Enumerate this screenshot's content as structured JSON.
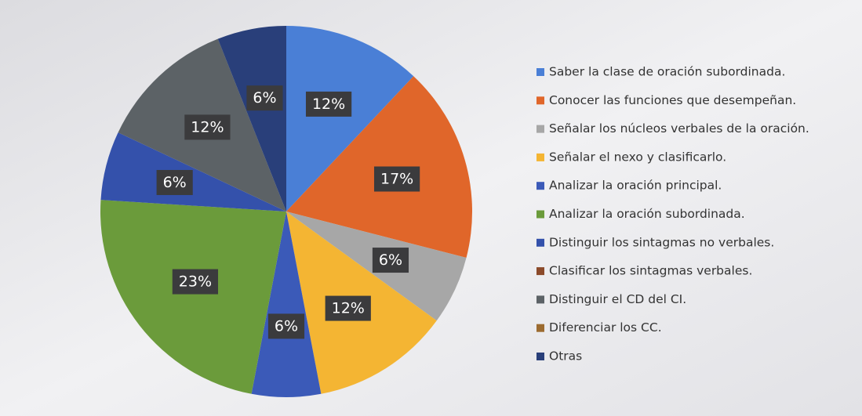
{
  "chart_data": {
    "type": "pie",
    "categories": [
      "Saber la clase de oración subordinada.",
      "Conocer las funciones que desempeñan.",
      "Señalar los núcleos verbales de la oración.",
      "Señalar el nexo y clasificarlo.",
      "Analizar la oración principal.",
      "Analizar la oración subordinada.",
      "Distinguir los sintagmas no verbales.",
      "Clasificar los sintagmas verbales.",
      "Distinguir el CD del CI.",
      "Diferenciar los CC.",
      "Otras"
    ],
    "values": [
      12,
      17,
      6,
      12,
      6,
      23,
      6,
      0,
      12,
      0,
      6
    ],
    "value_labels": [
      "12%",
      "17%",
      "6%",
      "12%",
      "6%",
      "23%",
      "6%",
      null,
      "12%",
      null,
      "6%"
    ],
    "colors": [
      "#4a7fd6",
      "#e0662a",
      "#a7a7a7",
      "#f4b533",
      "#3b5ab8",
      "#6b9b3b",
      "#3451ab",
      "#8b4a2a",
      "#5c6266",
      "#9c6b30",
      "#293f7a"
    ]
  }
}
